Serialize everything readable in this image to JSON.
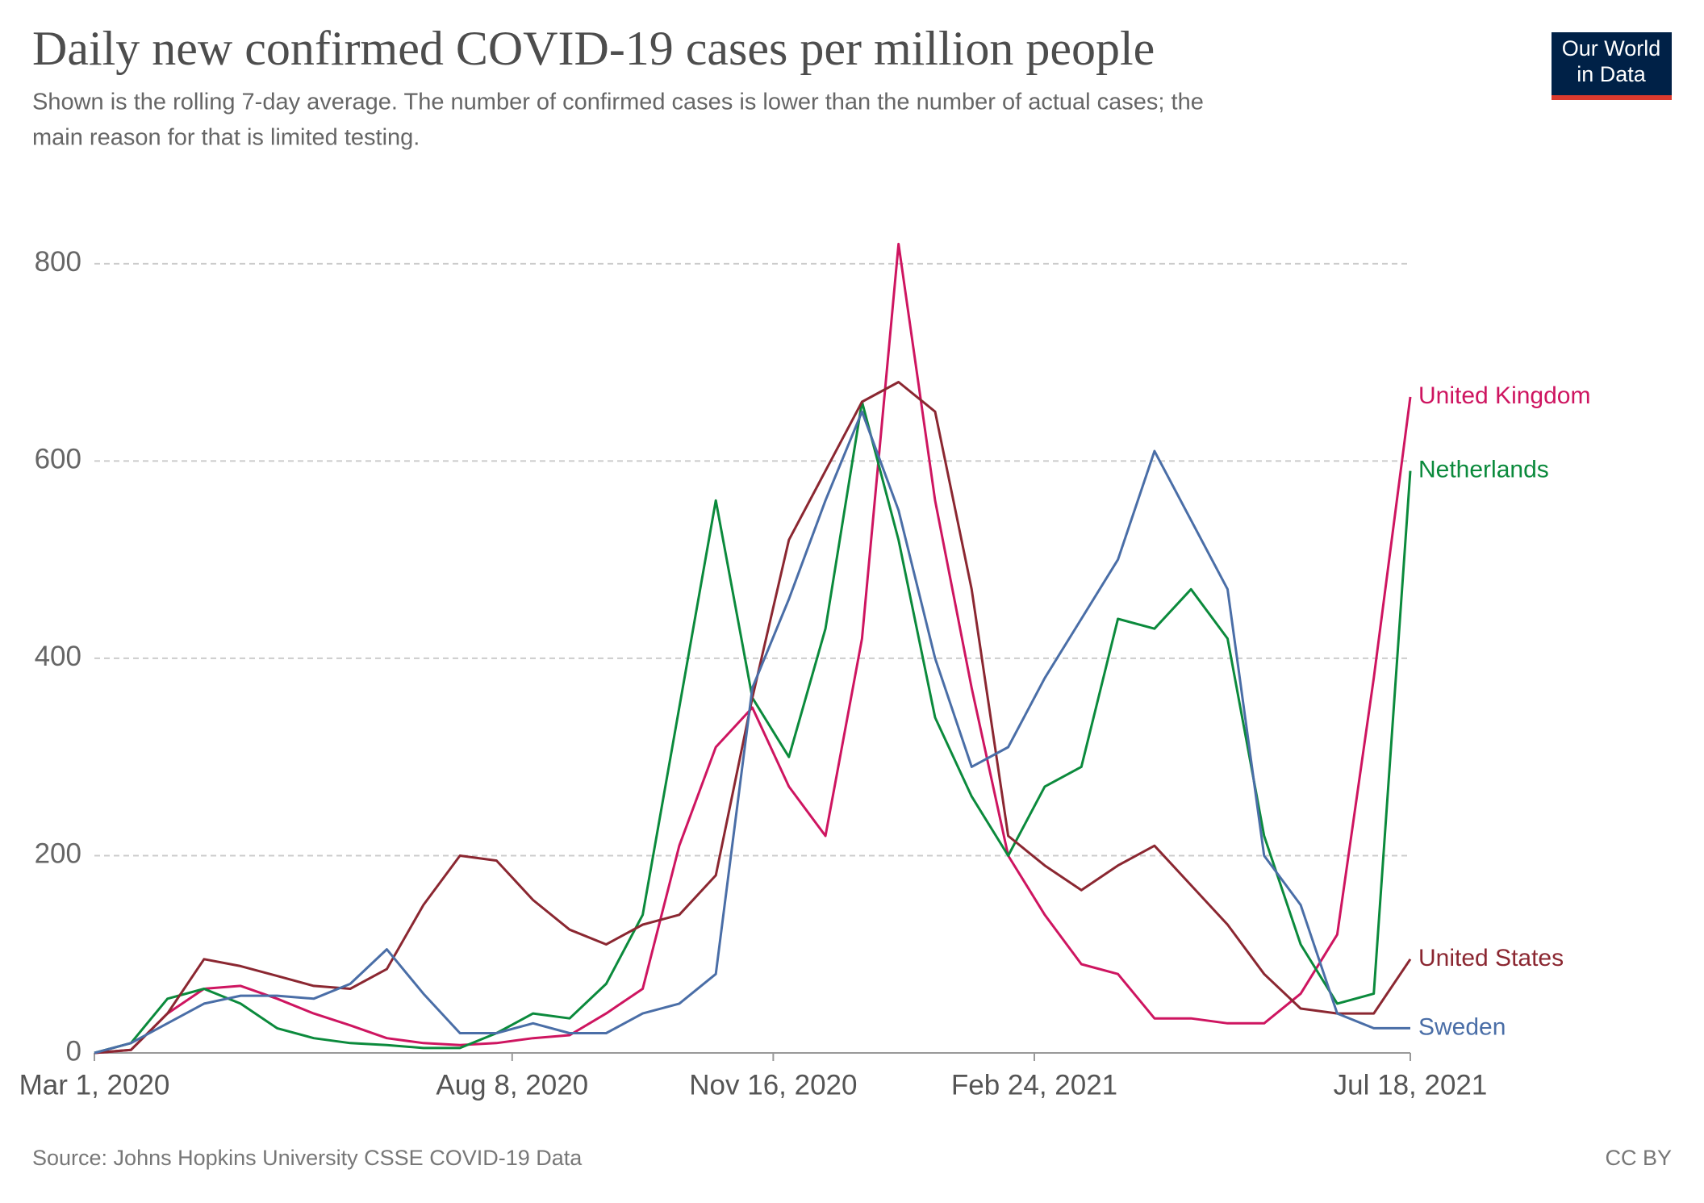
{
  "chart_data": {
    "type": "line",
    "title": "Daily new confirmed COVID-19 cases per million people",
    "subtitle": [
      "Shown is the rolling 7-day average. The number of confirmed cases is lower than the number of actual cases; the",
      "main reason for that is limited testing."
    ],
    "source": "Source: Johns Hopkins University CSSE COVID-19 Data",
    "license": "CC BY",
    "logo_text": [
      "Our World",
      "in Data"
    ],
    "x": [
      "2020-03-01",
      "2020-03-15",
      "2020-03-29",
      "2020-04-12",
      "2020-04-26",
      "2020-05-10",
      "2020-05-24",
      "2020-06-07",
      "2020-06-21",
      "2020-07-05",
      "2020-07-19",
      "2020-08-02",
      "2020-08-16",
      "2020-08-30",
      "2020-09-13",
      "2020-09-27",
      "2020-10-11",
      "2020-10-25",
      "2020-11-08",
      "2020-11-22",
      "2020-12-06",
      "2020-12-20",
      "2021-01-03",
      "2021-01-17",
      "2021-01-31",
      "2021-02-14",
      "2021-02-28",
      "2021-03-14",
      "2021-03-28",
      "2021-04-11",
      "2021-04-25",
      "2021-05-09",
      "2021-05-23",
      "2021-06-06",
      "2021-06-20",
      "2021-07-04",
      "2021-07-18"
    ],
    "series": [
      {
        "name": "United Kingdom",
        "color": "#ce1560",
        "values": [
          0,
          3,
          40,
          65,
          68,
          55,
          40,
          28,
          15,
          10,
          8,
          10,
          15,
          18,
          40,
          65,
          210,
          310,
          350,
          270,
          220,
          420,
          820,
          560,
          370,
          200,
          140,
          90,
          80,
          35,
          35,
          30,
          30,
          60,
          120,
          380,
          665
        ]
      },
      {
        "name": "Netherlands",
        "color": "#0b8a3c",
        "values": [
          0,
          10,
          55,
          65,
          50,
          25,
          15,
          10,
          8,
          5,
          5,
          20,
          40,
          35,
          70,
          140,
          350,
          560,
          360,
          300,
          430,
          660,
          520,
          340,
          260,
          200,
          270,
          290,
          440,
          430,
          470,
          420,
          220,
          110,
          50,
          60,
          590
        ]
      },
      {
        "name": "United States",
        "color": "#8b2731",
        "values": [
          0,
          3,
          40,
          95,
          88,
          78,
          68,
          65,
          85,
          150,
          200,
          195,
          155,
          125,
          110,
          130,
          140,
          180,
          360,
          520,
          590,
          660,
          680,
          650,
          470,
          220,
          190,
          165,
          190,
          210,
          170,
          130,
          80,
          45,
          40,
          40,
          95
        ]
      },
      {
        "name": "Sweden",
        "color": "#4a6ea7",
        "values": [
          0,
          10,
          30,
          50,
          58,
          58,
          55,
          70,
          105,
          60,
          20,
          20,
          30,
          20,
          20,
          40,
          50,
          80,
          370,
          460,
          560,
          650,
          550,
          400,
          290,
          310,
          380,
          440,
          500,
          610,
          540,
          470,
          200,
          150,
          40,
          25,
          25
        ]
      }
    ],
    "xlim": [
      "2020-03-01",
      "2021-07-18"
    ],
    "xticks": [
      {
        "value": "2020-03-01",
        "label": "Mar 1, 2020"
      },
      {
        "value": "2020-08-08",
        "label": "Aug 8, 2020"
      },
      {
        "value": "2020-11-16",
        "label": "Nov 16, 2020"
      },
      {
        "value": "2021-02-24",
        "label": "Feb 24, 2021"
      },
      {
        "value": "2021-07-18",
        "label": "Jul 18, 2021"
      }
    ],
    "ylim": [
      0,
      880
    ],
    "yticks": [
      0,
      200,
      400,
      600,
      800
    ],
    "grid": true
  }
}
